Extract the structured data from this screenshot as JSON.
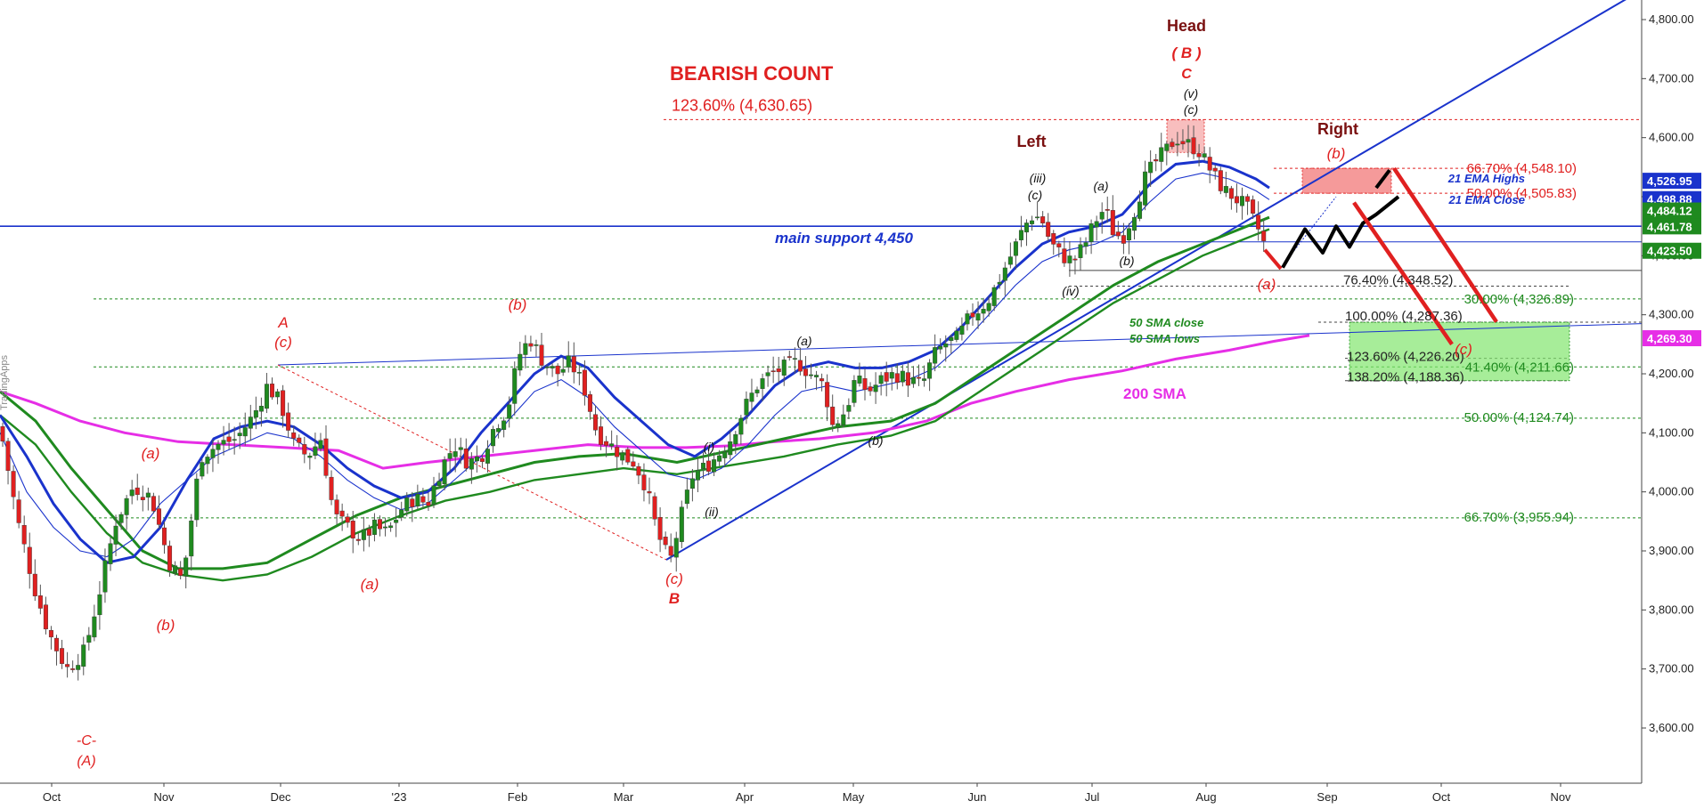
{
  "chart_data": {
    "type": "candlestick",
    "watermark": "TradingApps",
    "title": "BEARISH COUNT",
    "y_axis": {
      "position": "right",
      "min": 3500,
      "max": 4850,
      "ticks": [
        "4,800.00",
        "4,700.00",
        "4,600.00",
        "4,500.00",
        "4,400.00",
        "4,300.00",
        "4,200.00",
        "4,100.00",
        "4,000.00",
        "3,900.00",
        "3,800.00",
        "3,700.00",
        "3,600.00"
      ]
    },
    "x_axis": {
      "months": [
        "Oct",
        "Nov",
        "Dec",
        "'23",
        "Feb",
        "Mar",
        "Apr",
        "May",
        "Jun",
        "Jul",
        "Aug",
        "Sep",
        "Oct",
        "Nov"
      ]
    },
    "grid": false,
    "price_badges": [
      {
        "value": "4,526.95",
        "color": "#1a33cc"
      },
      {
        "value": "4,498.88",
        "color": "#1a33cc"
      },
      {
        "value": "4,484.12",
        "color": "#1f8a1f"
      },
      {
        "value": "4,461.78",
        "color": "#1f8a1f"
      },
      {
        "value": "4,423.50",
        "color": "#1f8a1f"
      },
      {
        "value": "4,269.30",
        "color": "#e62ee6"
      }
    ],
    "fib_levels": [
      {
        "label": "123.60% (4,630.65)",
        "value": 4630.65,
        "color": "#e02020"
      },
      {
        "label": "66.70% (4,548.10)",
        "value": 4548.1,
        "color": "#e02020"
      },
      {
        "label": "50.00% (4,505.83)",
        "value": 4505.83,
        "color": "#e02020"
      },
      {
        "label": "76.40% (4,348.52)",
        "value": 4348.52,
        "color": "#222222"
      },
      {
        "label": "30.00% (4,326.89)",
        "value": 4326.89,
        "color": "#1f8a1f"
      },
      {
        "label": "100.00% (4,287.36)",
        "value": 4287.36,
        "color": "#222222"
      },
      {
        "label": "123.60% (4,226.20)",
        "value": 4226.2,
        "color": "#222222"
      },
      {
        "label": "41.40% (4,211.66)",
        "value": 4211.66,
        "color": "#1f8a1f"
      },
      {
        "label": "138.20% (4,188.36)",
        "value": 4188.36,
        "color": "#222222"
      },
      {
        "label": "50.00% (4,124.74)",
        "value": 4124.74,
        "color": "#1f8a1f"
      },
      {
        "label": "66.70% (3,955.94)",
        "value": 3955.94,
        "color": "#1f8a1f"
      }
    ],
    "support": {
      "label": "main support 4,450",
      "value": 4450
    },
    "indicator_labels": {
      "ema_highs": "21 EMA Highs",
      "ema_close": "21 EMA Close",
      "sma50_close": "50 SMA close",
      "sma50_lows": "50 SMA lows",
      "sma200": "200 SMA"
    },
    "wave_labels": {
      "head": "Head",
      "b_paren": "( B )",
      "c_upper": "C",
      "left": "Left",
      "right": "Right",
      "big_a": "A",
      "big_b": "B",
      "c_low": "-C-",
      "a_paren_big": "(A)",
      "a": "(a)",
      "b": "(b)",
      "c": "(c)",
      "i": "(i)",
      "ii": "(ii)",
      "iii": "(iii)",
      "iv": "(iv)",
      "v": "(v)"
    },
    "series": [
      {
        "name": "21 EMA Highs"
      },
      {
        "name": "21 EMA Close"
      },
      {
        "name": "50 SMA close"
      },
      {
        "name": "50 SMA lows"
      },
      {
        "name": "200 SMA"
      }
    ],
    "projection_target": "(c)",
    "colors": {
      "up": "#1f8a1f",
      "down": "#e02020",
      "ema": "#1a33cc",
      "sma50": "#1f8a1f",
      "sma200": "#e62ee6",
      "fib": "#e02020",
      "text_dark": "#7a1010"
    }
  }
}
